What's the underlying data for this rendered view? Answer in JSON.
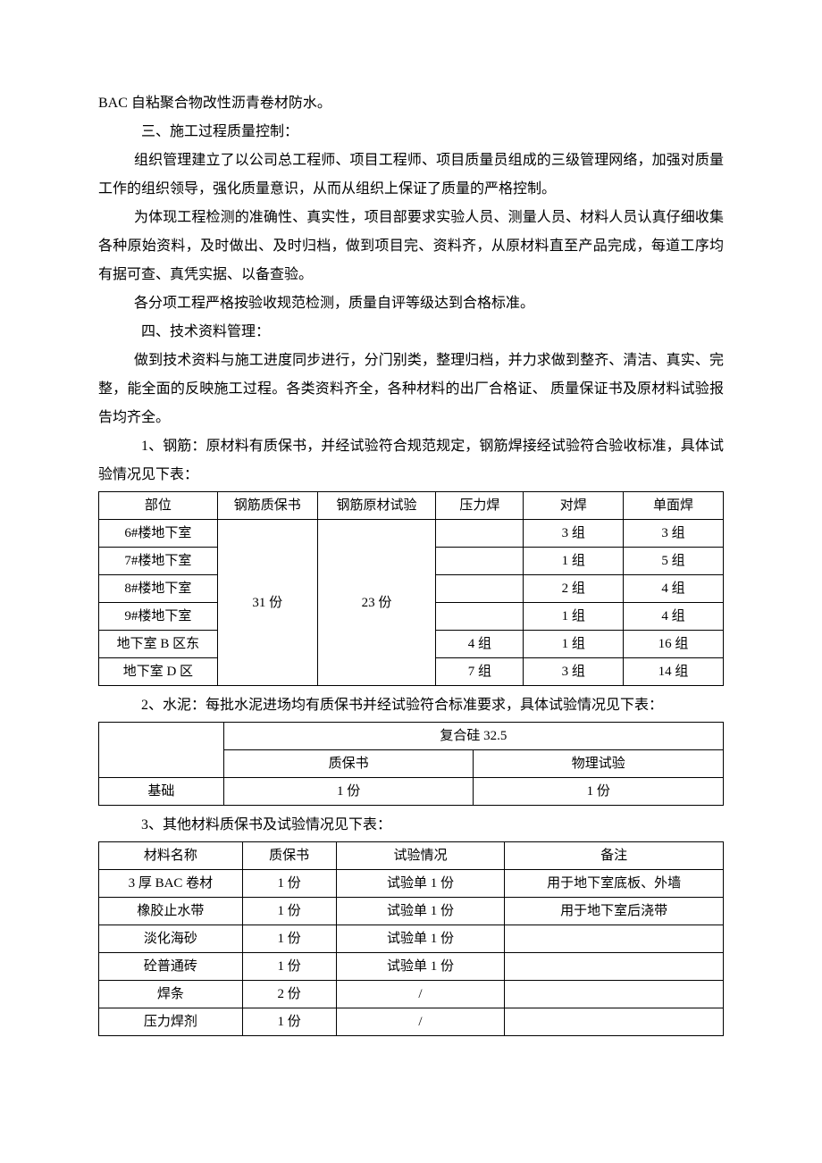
{
  "paragraphs": {
    "p1": "BAC 自粘聚合物改性沥青卷材防水。",
    "p2": "三、施工过程质量控制：",
    "p3": "组织管理建立了以公司总工程师、项目工程师、项目质量员组成的三级管理网络，加强对质量工作的组织领导，强化质量意识，从而从组织上保证了质量的严格控制。",
    "p4": "为体现工程检测的准确性、真实性，项目部要求实验人员、测量人员、材料人员认真仔细收集各种原始资料，及时做出、及时归档，做到项目完、资料齐，从原材料直至产品完成，每道工序均有据可查、真凭实据、以备查验。",
    "p5": "各分项工程严格按验收规范检测，质量自评等级达到合格标准。",
    "p6": "四、技术资料管理：",
    "p7": "做到技术资料与施工进度同步进行，分门别类，整理归档，并力求做到整齐、清洁、真实、完整，能全面的反映施工过程。各类资料齐全，各种材料的出厂合格证、 质量保证书及原材料试验报告均齐全。",
    "p8": "1、钢筋：原材料有质保书，并经试验符合规范规定，钢筋焊接经试验符合验收标准，具体试验情况见下表：",
    "p9": "2、水泥：每批水泥进场均有质保书并经试验符合标准要求，具体试验情况见下表：",
    "p10": "3、其他材料质保书及试验情况见下表："
  },
  "table1": {
    "headers": [
      "部位",
      "钢筋质保书",
      "钢筋原材试验",
      "压力焊",
      "对焊",
      "单面焊"
    ],
    "col_widths": [
      "19%",
      "16%",
      "19%",
      "14%",
      "16%",
      "16%"
    ],
    "merged": {
      "zhibao": "31 份",
      "yuancai": "23 份"
    },
    "rows": [
      {
        "buwei": "6#楼地下室",
        "yalihan": "",
        "duihan": "3 组",
        "danmian": "3 组"
      },
      {
        "buwei": "7#楼地下室",
        "yalihan": "",
        "duihan": "1 组",
        "danmian": "5 组"
      },
      {
        "buwei": "8#楼地下室",
        "yalihan": "",
        "duihan": "2 组",
        "danmian": "4 组"
      },
      {
        "buwei": "9#楼地下室",
        "yalihan": "",
        "duihan": "1 组",
        "danmian": "4 组"
      },
      {
        "buwei": "地下室 B 区东",
        "yalihan": "4 组",
        "duihan": "1 组",
        "danmian": "16 组"
      },
      {
        "buwei": "地下室 D 区",
        "yalihan": "7 组",
        "duihan": "3 组",
        "danmian": "14 组"
      }
    ]
  },
  "table2": {
    "col_widths": [
      "20%",
      "40%",
      "40%"
    ],
    "header_top": "复合硅 32.5",
    "headers": [
      "质保书",
      "物理试验"
    ],
    "row_label": "基础",
    "row": [
      "1 份",
      "1 份"
    ]
  },
  "table3": {
    "headers": [
      "材料名称",
      "质保书",
      "试验情况",
      "备注"
    ],
    "col_widths": [
      "23%",
      "15%",
      "27%",
      "35%"
    ],
    "rows": [
      [
        "3 厚 BAC 卷材",
        "1 份",
        "试验单 1 份",
        "用于地下室底板、外墙"
      ],
      [
        "橡胶止水带",
        "1 份",
        "试验单 1 份",
        "用于地下室后浇带"
      ],
      [
        "淡化海砂",
        "1 份",
        "试验单 1 份",
        ""
      ],
      [
        "砼普通砖",
        "1 份",
        "试验单 1 份",
        ""
      ],
      [
        "焊条",
        "2 份",
        "/",
        ""
      ],
      [
        "压力焊剂",
        "1 份",
        "/",
        ""
      ]
    ]
  }
}
